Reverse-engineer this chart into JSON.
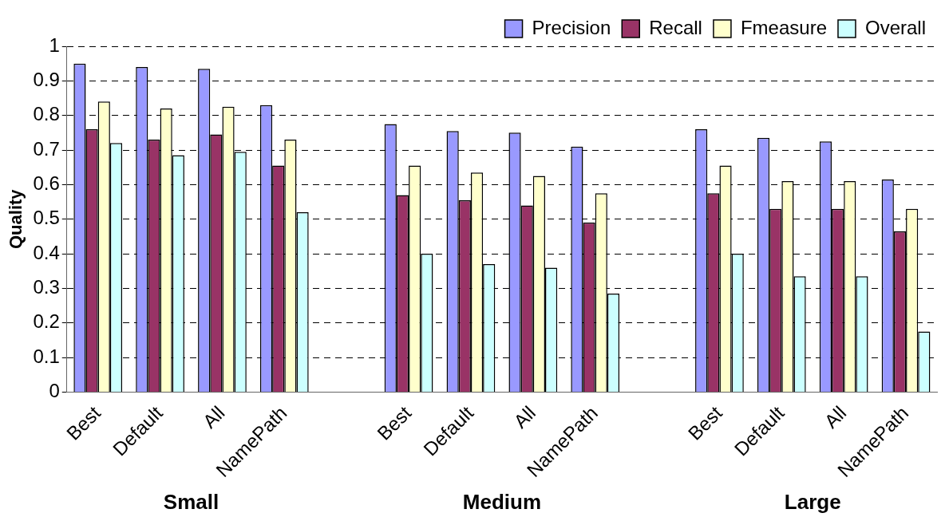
{
  "chart_data": {
    "type": "bar",
    "ylabel": "Quality",
    "categories": [
      "Best",
      "Default",
      "All",
      "NamePath",
      null,
      "Best",
      "Default",
      "All",
      "NamePath",
      null,
      "Best",
      "Default",
      "All",
      "NamePath"
    ],
    "series": [
      {
        "name": "Precision",
        "color": "#9999ff",
        "values": [
          0.95,
          0.94,
          0.935,
          0.83,
          null,
          0.775,
          0.755,
          0.75,
          0.71,
          null,
          0.76,
          0.735,
          0.725,
          0.615
        ]
      },
      {
        "name": "Recall",
        "color": "#993366",
        "values": [
          0.76,
          0.73,
          0.745,
          0.655,
          null,
          0.57,
          0.555,
          0.54,
          0.49,
          null,
          0.575,
          0.53,
          0.53,
          0.465
        ]
      },
      {
        "name": "Fmeasure",
        "color": "#ffffcc",
        "values": [
          0.84,
          0.82,
          0.825,
          0.73,
          null,
          0.655,
          0.635,
          0.625,
          0.575,
          null,
          0.655,
          0.61,
          0.61,
          0.53
        ]
      },
      {
        "name": "Overall",
        "color": "#ccffff",
        "values": [
          0.72,
          0.685,
          0.695,
          0.52,
          null,
          0.4,
          0.37,
          0.36,
          0.285,
          null,
          0.4,
          0.335,
          0.335,
          0.175
        ]
      }
    ],
    "ylim": [
      0,
      1
    ],
    "yticks": [
      0,
      0.1,
      0.2,
      0.3,
      0.4,
      0.5,
      0.6,
      0.7,
      0.8,
      0.9,
      1
    ],
    "grid": "y",
    "legend": "top right",
    "annotations": [
      "Small",
      "Medium",
      "Large"
    ]
  }
}
